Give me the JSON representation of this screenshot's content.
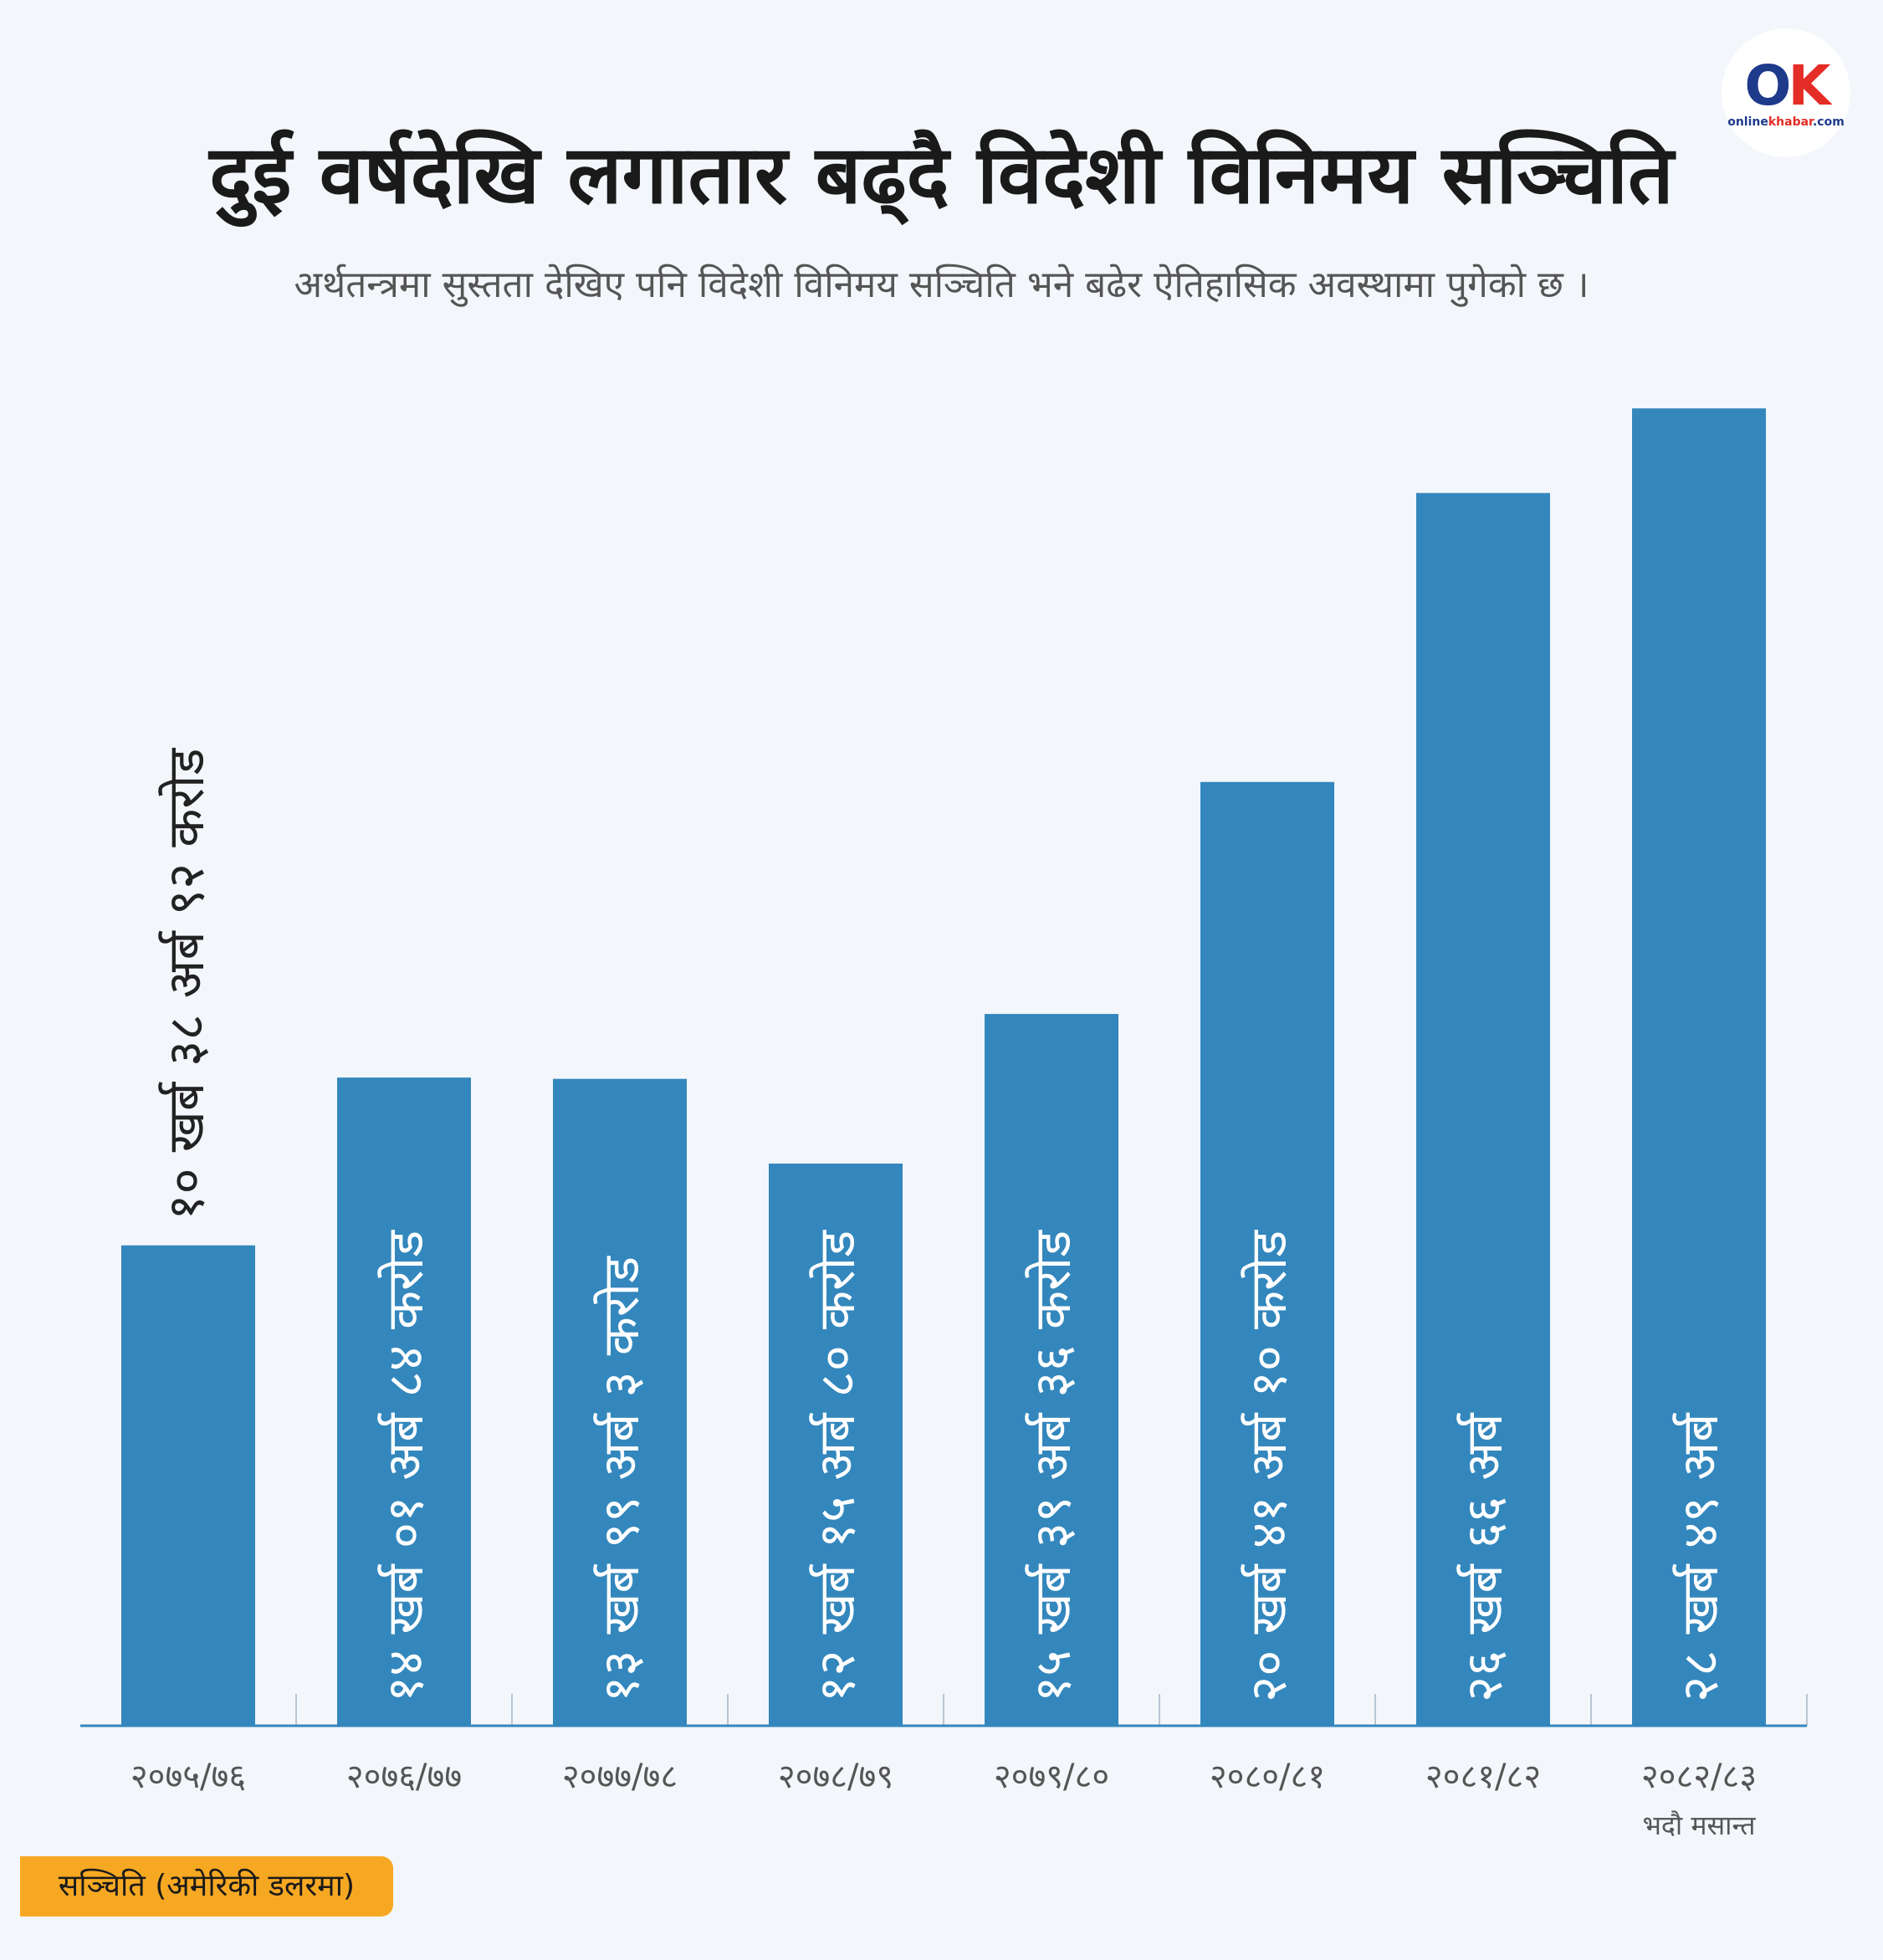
{
  "header": {
    "title": "दुई वर्षदेखि लगातार बढ्दै विदेशी विनिमय सञ्चिति",
    "subtitle": "अर्थतन्त्रमा सुस्तता देखिए पनि विदेशी विनिमय सञ्चिति भने बढेर ऐतिहासिक अवस्थामा पुगेको छ ।"
  },
  "logo": {
    "mark_o": "O",
    "mark_k": "K",
    "text_a": "online",
    "text_b": "khabar",
    "text_c": ".com"
  },
  "legend": {
    "label": "सञ्चिति (अमेरिकी डलरमा)",
    "color": "#f7a823"
  },
  "colors": {
    "bar": "#3387bd",
    "axis": "#3387bd",
    "bar_text": "#ffffff",
    "outside_text": "#222222",
    "tick": "#555555"
  },
  "chart_data": {
    "type": "bar",
    "categories": [
      "२०७५/७६",
      "२०७६/७७",
      "२०७७/७८",
      "२०७८/७९",
      "२०७९/८०",
      "२०८०/८१",
      "२०८१/८२",
      "२०८२/८३"
    ],
    "category_notes": [
      "",
      "",
      "",
      "",
      "",
      "",
      "",
      "भदौ मसान्त"
    ],
    "values": [
      1038.92,
      1401.84,
      1399.03,
      1215.8,
      1539.36,
      2041.1,
      2666,
      2849
    ],
    "value_labels": [
      "१० खर्ब ३८ अर्ब ९२ करोड",
      "१४ खर्ब ०१ अर्ब ८४ करोड",
      "१३ खर्ब ९९ अर्ब ३ करोड",
      "१२ खर्ब १५ अर्ब ८० करोड",
      "१५ खर्ब ३९ अर्ब ३६ करोड",
      "२० खर्ब ४१ अर्ब १० करोड",
      "२६ खर्ब ६६ अर्ब",
      "२८ खर्ब ४९ अर्ब"
    ],
    "label_outside_bar": [
      true,
      false,
      false,
      false,
      false,
      false,
      false,
      false
    ],
    "ylim": [
      0,
      2900
    ],
    "grid": false,
    "series_name": "सञ्चिति (अमेरिकी डलरमा)"
  }
}
